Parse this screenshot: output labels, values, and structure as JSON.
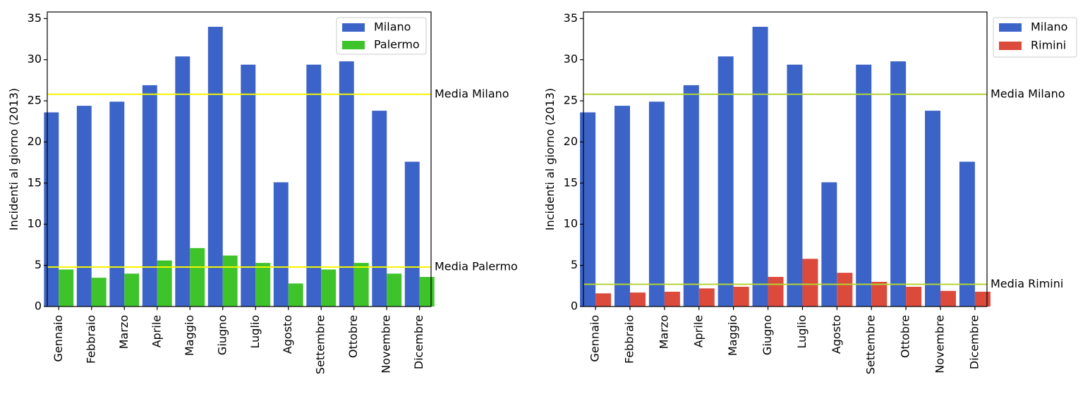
{
  "chart_data": [
    {
      "type": "bar",
      "title": "",
      "xlabel": "",
      "ylabel": "Incidenti al giorno (2013)",
      "ylim": [
        0,
        35.8
      ],
      "yticks": [
        0,
        5,
        10,
        15,
        20,
        25,
        30,
        35
      ],
      "categories": [
        "Gennaio",
        "Febbraio",
        "Marzo",
        "Aprile",
        "Maggio",
        "Giugno",
        "Luglio",
        "Agosto",
        "Settembre",
        "Ottobre",
        "Novembre",
        "Dicembre"
      ],
      "series": [
        {
          "name": "Milano",
          "color": "#3c64c8",
          "values": [
            23.6,
            24.4,
            24.9,
            26.9,
            30.4,
            34.0,
            29.4,
            15.1,
            29.4,
            29.8,
            23.8,
            17.6
          ]
        },
        {
          "name": "Palermo",
          "color": "#3ec42a",
          "values": [
            4.5,
            3.5,
            4.0,
            5.6,
            7.1,
            6.2,
            5.3,
            2.8,
            4.5,
            5.3,
            4.0,
            3.6
          ]
        }
      ],
      "reference_lines": [
        {
          "label": "Media Milano",
          "value": 25.8,
          "color": "#f4f400"
        },
        {
          "label": "Media Palermo",
          "value": 4.8,
          "color": "#f4f400"
        }
      ],
      "legend_position": "upper-right-inside",
      "grid": false
    },
    {
      "type": "bar",
      "title": "",
      "xlabel": "",
      "ylabel": "Incidenti al giorno (2013)",
      "ylim": [
        0,
        35.8
      ],
      "yticks": [
        0,
        5,
        10,
        15,
        20,
        25,
        30,
        35
      ],
      "categories": [
        "Gennaio",
        "Febbraio",
        "Marzo",
        "Aprile",
        "Maggio",
        "Giugno",
        "Luglio",
        "Agosto",
        "Settembre",
        "Ottobre",
        "Novembre",
        "Dicembre"
      ],
      "series": [
        {
          "name": "Milano",
          "color": "#3c64c8",
          "values": [
            23.6,
            24.4,
            24.9,
            26.9,
            30.4,
            34.0,
            29.4,
            15.1,
            29.4,
            29.8,
            23.8,
            17.6
          ]
        },
        {
          "name": "Rimini",
          "color": "#dc4a3c",
          "values": [
            1.6,
            1.7,
            1.8,
            2.2,
            2.4,
            3.6,
            5.8,
            4.1,
            3.0,
            2.4,
            1.9,
            1.8
          ]
        }
      ],
      "reference_lines": [
        {
          "label": "Media Milano",
          "value": 25.8,
          "color": "#b4d432"
        },
        {
          "label": "Media Rimini",
          "value": 2.7,
          "color": "#b4d432"
        }
      ],
      "legend_position": "outside-right",
      "grid": false
    }
  ]
}
